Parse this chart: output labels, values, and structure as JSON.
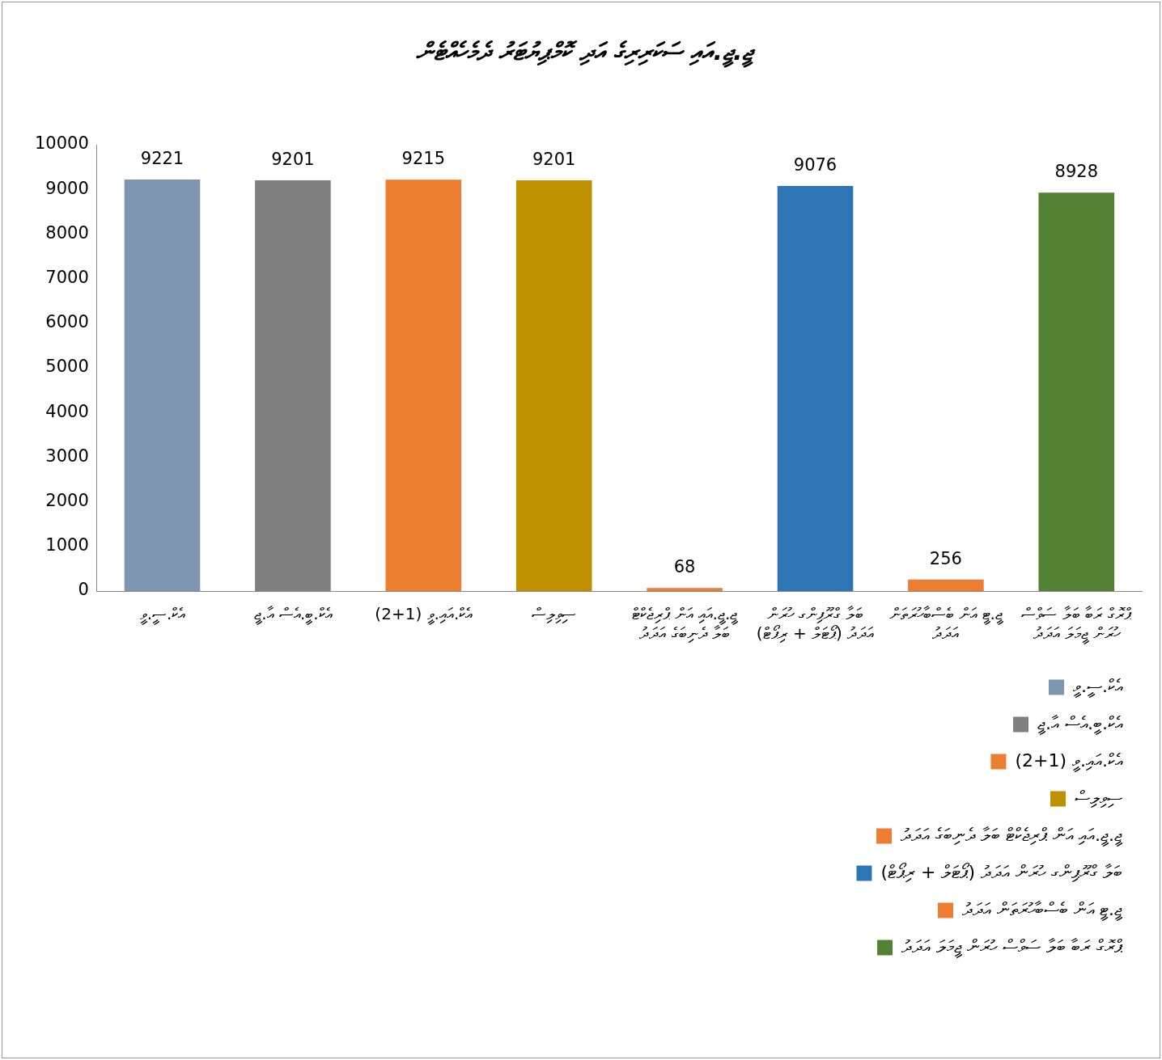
{
  "chart_data": {
    "type": "bar",
    "title": "ޖީ.ޖީ.އައި ސަކަރިރިގެ އަދި ކޮމްޕިޔުޓަރު ދެމެހެއްޓެން",
    "categories": [
      "އެކް.ސީ.ވީ",
      "އެކް.ބީ.އެސް އާ.ޖީ",
      "އެކް.އައި.ވީ (1+2)",
      "ސިވިލިސް",
      "ޖީ.ޖީ.އައި އަން ޕްރިޖެކްޓް ބަލާ ދެނިބަގެ އަދަދު",
      "ބަލާ ގްރޫޕިންގ ހުރަން އަދަދު (ޕޯޓަލް + ރިޕޯޓް)",
      "ޖީ.ޓީ އަން ބެސްބާހުރަތަން އަދަދު",
      "ޕްރޮގް ރަބާ ބަލާ ސަވްސް ހުރަން ޖީމަލަ އަދަދު"
    ],
    "series": [
      {
        "name": "އެކް.ސީ.ވީ",
        "color": "#7f96b2",
        "values": [
          9221,
          null,
          null,
          null,
          null,
          null,
          null,
          null
        ]
      },
      {
        "name": "އެކް.ބީ.އެސް އާ.ޖީ",
        "color": "#7f7f7f",
        "values": [
          null,
          9201,
          null,
          null,
          null,
          null,
          null,
          null
        ]
      },
      {
        "name": "އެކް.އައި.ވީ (1+2)",
        "color": "#ed7d31",
        "values": [
          null,
          null,
          9215,
          null,
          null,
          null,
          null,
          null
        ]
      },
      {
        "name": "ސިވިލިސް",
        "color": "#bf9000",
        "values": [
          null,
          null,
          null,
          9201,
          null,
          null,
          null,
          null
        ]
      },
      {
        "name": "ޖީ.ޖީ.އައި އަން ޕްރިޖެކްޓް ބަލާ ދެނިބަގެ އަދަދު",
        "color": "#ed7d31",
        "values": [
          null,
          null,
          null,
          null,
          68,
          null,
          null,
          null
        ]
      },
      {
        "name": "ބަލާ ގްރޫޕިންގ ހުރަން އަދަދު (ޕޯޓަލް + ރިޕޯޓް)",
        "color": "#2e75b6",
        "values": [
          null,
          null,
          null,
          null,
          null,
          9076,
          null,
          null
        ]
      },
      {
        "name": "ޖީ.ޓީ އަން ބެސްބާހުރަތަން އަދަދު",
        "color": "#ed7d31",
        "values": [
          null,
          null,
          null,
          null,
          null,
          null,
          256,
          null
        ]
      },
      {
        "name": "ޕްރޮގް ރަބާ ބަލާ ސަވްސް ހުރަން ޖީމަލަ އަދަދު",
        "color": "#548235",
        "values": [
          null,
          null,
          null,
          null,
          null,
          null,
          null,
          8928
        ]
      }
    ],
    "ylim": [
      0,
      10000
    ],
    "yticks": [
      0,
      1000,
      2000,
      3000,
      4000,
      5000,
      6000,
      7000,
      8000,
      9000,
      10000
    ],
    "data_labels": true,
    "legend": "bottom right"
  }
}
